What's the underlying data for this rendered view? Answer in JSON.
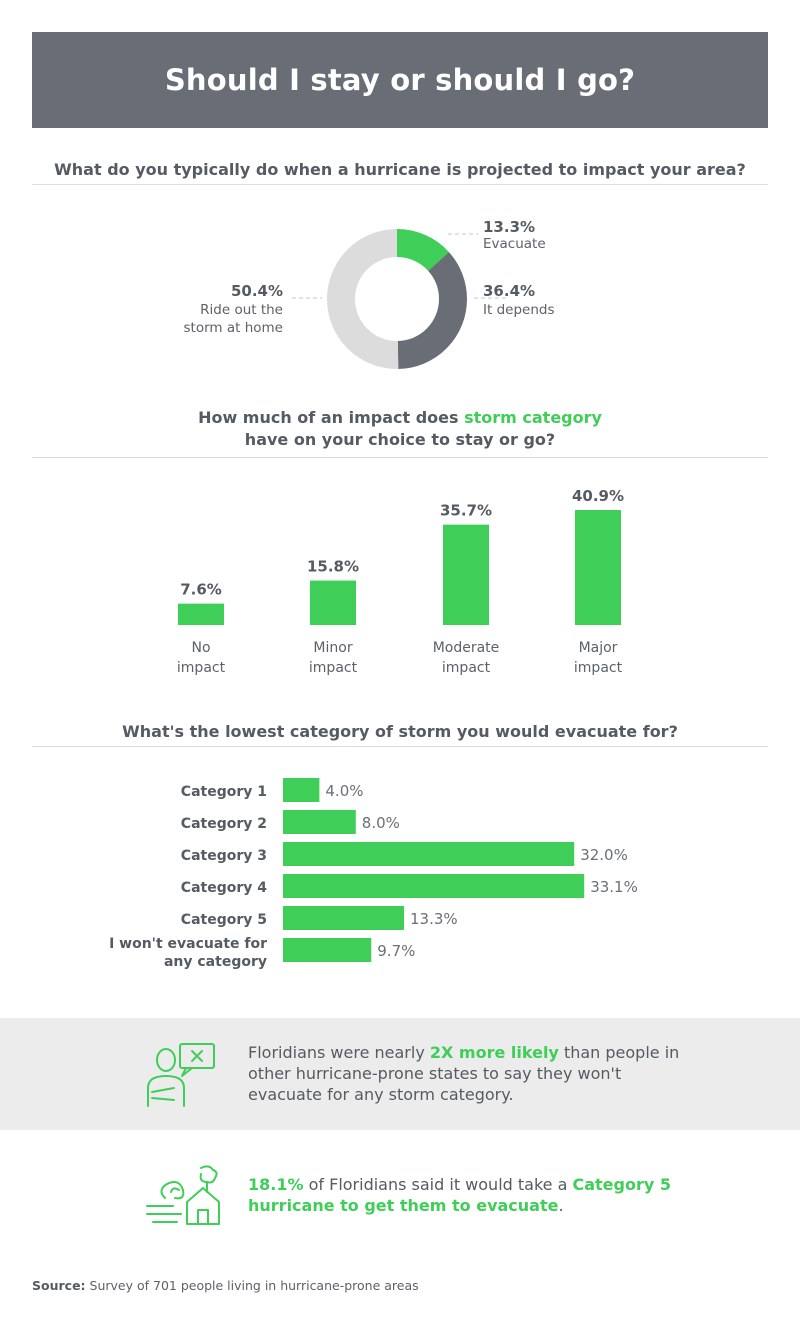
{
  "title": "Should I stay or should I go?",
  "colors": {
    "accent": "#3fce58",
    "dark": "#686d76",
    "light": "#dcdcdc",
    "text": "#555b63"
  },
  "chart_data": [
    {
      "type": "pie",
      "subtype": "donut",
      "title": "What do you typically do when a hurricane is projected to impact your area?",
      "slices": [
        {
          "value": 13.3,
          "value_label": "13.3%",
          "label": "Evacuate",
          "color": "#3fce58"
        },
        {
          "value": 36.4,
          "value_label": "36.4%",
          "label": "It depends",
          "color": "#686d76"
        },
        {
          "value": 50.4,
          "value_label": "50.4%",
          "label_line1": "Ride out the",
          "label_line2": "storm at home",
          "color": "#dcdcdc"
        }
      ]
    },
    {
      "type": "bar",
      "title_pre": "How much of an impact does ",
      "title_accent": "storm category",
      "title_post": "have on your choice to stay or go?",
      "categories": [
        {
          "line1": "No",
          "line2": "impact"
        },
        {
          "line1": "Minor",
          "line2": "impact"
        },
        {
          "line1": "Moderate",
          "line2": "impact"
        },
        {
          "line1": "Major",
          "line2": "impact"
        }
      ],
      "values": [
        7.6,
        15.8,
        35.7,
        40.9
      ],
      "value_labels": [
        "7.6%",
        "15.8%",
        "35.7%",
        "40.9%"
      ]
    },
    {
      "type": "bar",
      "orientation": "horizontal",
      "title": "What's the lowest category of storm you would evacuate for?",
      "categories": [
        {
          "line1": "Category 1",
          "line2": ""
        },
        {
          "line1": "Category 2",
          "line2": ""
        },
        {
          "line1": "Category 3",
          "line2": ""
        },
        {
          "line1": "Category 4",
          "line2": ""
        },
        {
          "line1": "Category 5",
          "line2": ""
        },
        {
          "line1": "I won't evacuate for",
          "line2": "any category"
        }
      ],
      "values": [
        4.0,
        8.0,
        32.0,
        33.1,
        13.3,
        9.7
      ],
      "value_labels": [
        "4.0%",
        "8.0%",
        "32.0%",
        "33.1%",
        "13.3%",
        "9.7%"
      ]
    }
  ],
  "callout1": {
    "pre": "Floridians were nearly ",
    "accent": "2X more likely",
    "post": " than people in other hurricane-prone states to say they won't evacuate for any storm category.",
    "icon": "person-speech-icon"
  },
  "callout2": {
    "accent1": "18.1%",
    "mid": " of Floridians said it would take a ",
    "accent2": "Category 5 hurricane to get them to evacuate",
    "end": ".",
    "icon": "hurricane-house-icon"
  },
  "source": {
    "label": "Source:",
    "text": " Survey of 701 people living in hurricane-prone areas"
  }
}
